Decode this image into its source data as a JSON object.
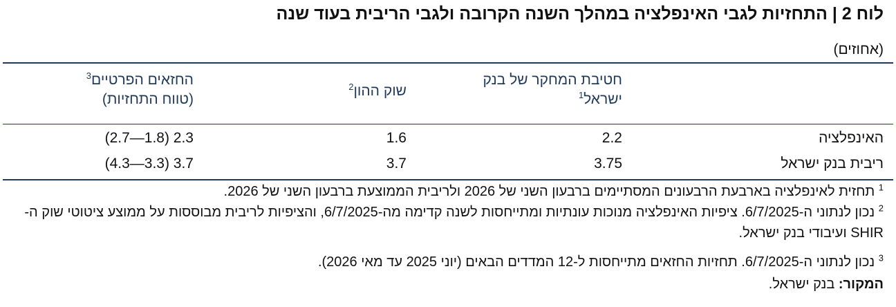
{
  "table": {
    "title": "לוח 2 | התחזיות לגבי האינפלציה במהלך השנה הקרובה ולגבי הריבית בעוד שנה",
    "units": "(אחוזים)",
    "columns": [
      {
        "line1": "חטיבת המחקר של בנק",
        "line2": "ישראל",
        "sup": "1"
      },
      {
        "line1": "שוק ההון",
        "sup": "2"
      },
      {
        "line1": "החזאים הפרטיים",
        "sup": "3",
        "line2": "(טווח התחזיות)"
      }
    ],
    "rows": [
      {
        "label": "האינפלציה",
        "research": "2.2",
        "market": "1.6",
        "forecasters": "2.3 (1.8—2.7)"
      },
      {
        "label": "ריבית בנק ישראל",
        "research": "3.75",
        "market": "3.7",
        "forecasters": "3.7 (3.3—4.3)"
      }
    ]
  },
  "footnotes": [
    {
      "num": "1",
      "text": "תחזית לאינפלציה בארבעת הרבעונים המסתיימים ברבעון השני של 2026 ולריבית הממוצעת ברבעון השני של 2026."
    },
    {
      "num": "2",
      "text": "נכון לנתוני ה-6/7/2025. ציפיות האינפלציה מנוכות עונתיות ומתייחסות לשנה קדימה מה-6/7/2025, והציפיות לריבית מבוססות על ממוצע ציטוטי שוק ה-SHIR ועיבודי בנק ישראל."
    },
    {
      "num": "3",
      "text": "נכון לנתוני ה-6/7/2025. תחזיות החזאים מתייחסות ל-12 המדדים הבאים (יוני 2025 עד מאי 2026)."
    }
  ],
  "source": {
    "label": "המקור:",
    "text": "בנק ישראל."
  }
}
